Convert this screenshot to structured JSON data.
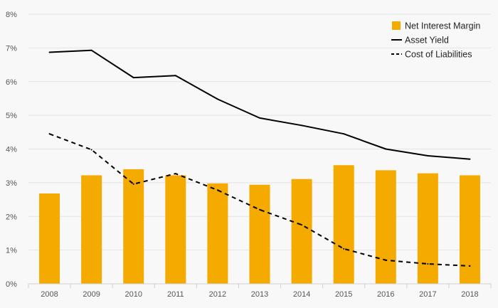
{
  "chart_data": {
    "type": "bar",
    "categories": [
      "2008",
      "2009",
      "2010",
      "2011",
      "2012",
      "2013",
      "2014",
      "2015",
      "2016",
      "2017",
      "2018"
    ],
    "ylim": [
      0,
      8
    ],
    "yticks": [
      0,
      1,
      2,
      3,
      4,
      5,
      6,
      7,
      8
    ],
    "ytick_suffix": "%",
    "grid": true,
    "legend_position": "top-right",
    "series": [
      {
        "name": "Net Interest Margin",
        "kind": "bar",
        "color": "#F5AA00",
        "values": [
          2.68,
          3.22,
          3.4,
          3.22,
          2.98,
          2.94,
          3.11,
          3.52,
          3.37,
          3.28,
          3.22
        ]
      },
      {
        "name": "Asset Yield",
        "kind": "line",
        "style": "solid",
        "color": "#000000",
        "values": [
          6.87,
          6.93,
          6.12,
          6.18,
          5.48,
          4.92,
          4.7,
          4.45,
          4.0,
          3.8,
          3.7
        ]
      },
      {
        "name": "Cost of Liabilities",
        "kind": "line",
        "style": "dashed",
        "color": "#000000",
        "values": [
          4.45,
          3.98,
          2.96,
          3.27,
          2.78,
          2.2,
          1.75,
          1.04,
          0.7,
          0.59,
          0.53
        ]
      }
    ]
  }
}
